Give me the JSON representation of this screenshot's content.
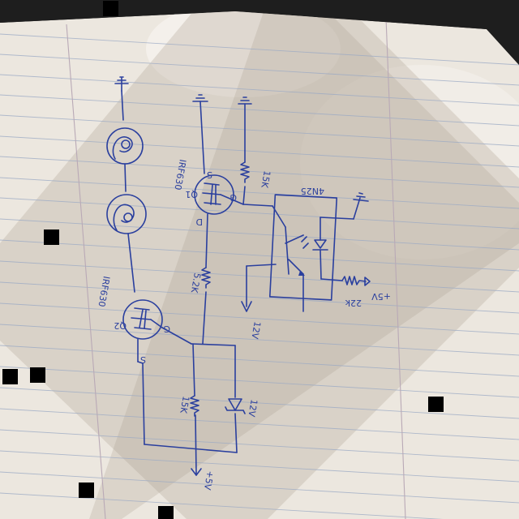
{
  "labels": {
    "q1": "Q1",
    "q1_part": "IRF630",
    "q1_s": "S",
    "q1_g": "G",
    "q1_d": "D",
    "r_gate": "15K",
    "r_drain": "5.2K",
    "opto": "4N25",
    "r_led": "22k",
    "v_led": "+5V",
    "v_opto": "12V",
    "q2": "Q2",
    "q2_part": "IRF630",
    "q2_g": "G",
    "q2_s": "S",
    "r_bottom": "15K",
    "v_zener": "12V",
    "v_bottom": "+5V"
  },
  "colors": {
    "ink": "#2a3f9e",
    "paper": "#ece7df",
    "rule": "#9aa9c4",
    "margin": "#b9a9b6",
    "background": "#1c1c1c"
  }
}
